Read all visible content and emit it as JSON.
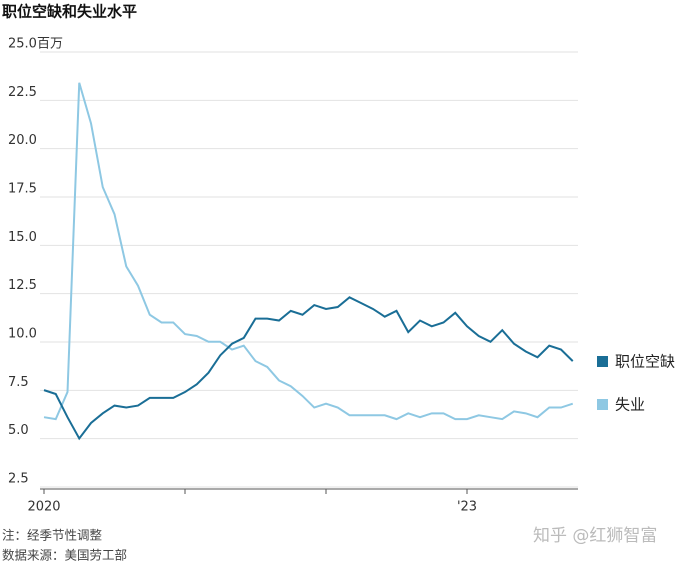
{
  "chart_data": {
    "type": "line",
    "title": "职位空缺和失业水平",
    "categories": [
      "2020",
      null,
      null,
      null,
      null,
      null,
      null,
      null,
      null,
      null,
      null,
      null,
      null,
      null,
      null,
      null,
      null,
      null,
      null,
      null,
      null,
      null,
      null,
      null,
      null,
      null,
      null,
      null,
      null,
      null,
      null,
      null,
      null,
      null,
      null,
      null,
      "'23",
      null,
      null,
      null,
      null,
      null,
      null,
      null,
      null,
      null
    ],
    "series": [
      {
        "name": "职位空缺",
        "color": "#1a6e96",
        "values": [
          7.2,
          7.0,
          5.8,
          4.7,
          5.5,
          6.0,
          6.4,
          6.3,
          6.4,
          6.8,
          6.8,
          6.8,
          7.1,
          7.5,
          8.1,
          9.0,
          9.6,
          9.9,
          10.9,
          10.9,
          10.8,
          11.3,
          11.1,
          11.6,
          11.4,
          11.5,
          12.0,
          11.7,
          11.4,
          11.0,
          11.3,
          10.2,
          10.8,
          10.5,
          10.7,
          11.2,
          10.5,
          10.0,
          9.7,
          10.3,
          9.6,
          9.2,
          8.9,
          9.5,
          9.3,
          8.7
        ]
      },
      {
        "name": "失业",
        "color": "#8ec8e3",
        "values": [
          5.8,
          5.7,
          7.1,
          23.1,
          21.0,
          17.7,
          16.3,
          13.6,
          12.6,
          11.1,
          10.7,
          10.7,
          10.1,
          10.0,
          9.7,
          9.7,
          9.3,
          9.5,
          8.7,
          8.4,
          7.7,
          7.4,
          6.9,
          6.3,
          6.5,
          6.3,
          5.9,
          5.9,
          5.9,
          5.9,
          5.7,
          6.0,
          5.8,
          6.0,
          6.0,
          5.7,
          5.7,
          5.9,
          5.8,
          5.7,
          6.1,
          6.0,
          5.8,
          6.3,
          6.3,
          6.5
        ]
      }
    ],
    "ylim": [
      2.5,
      25
    ],
    "yticks": [
      {
        "value": 25,
        "label": "25.0百万"
      },
      22.5,
      {
        "value": 20,
        "label": "20.0"
      },
      17.5,
      {
        "value": 15,
        "label": "15.0"
      },
      12.5,
      {
        "value": 10,
        "label": "10.0"
      },
      7.5,
      {
        "value": 5,
        "label": "5.0"
      },
      2.5
    ],
    "grid": true,
    "notes": [
      "注：经季节性调整",
      "数据来源：美国劳工部"
    ],
    "watermark": "知乎 @红狮智富"
  }
}
